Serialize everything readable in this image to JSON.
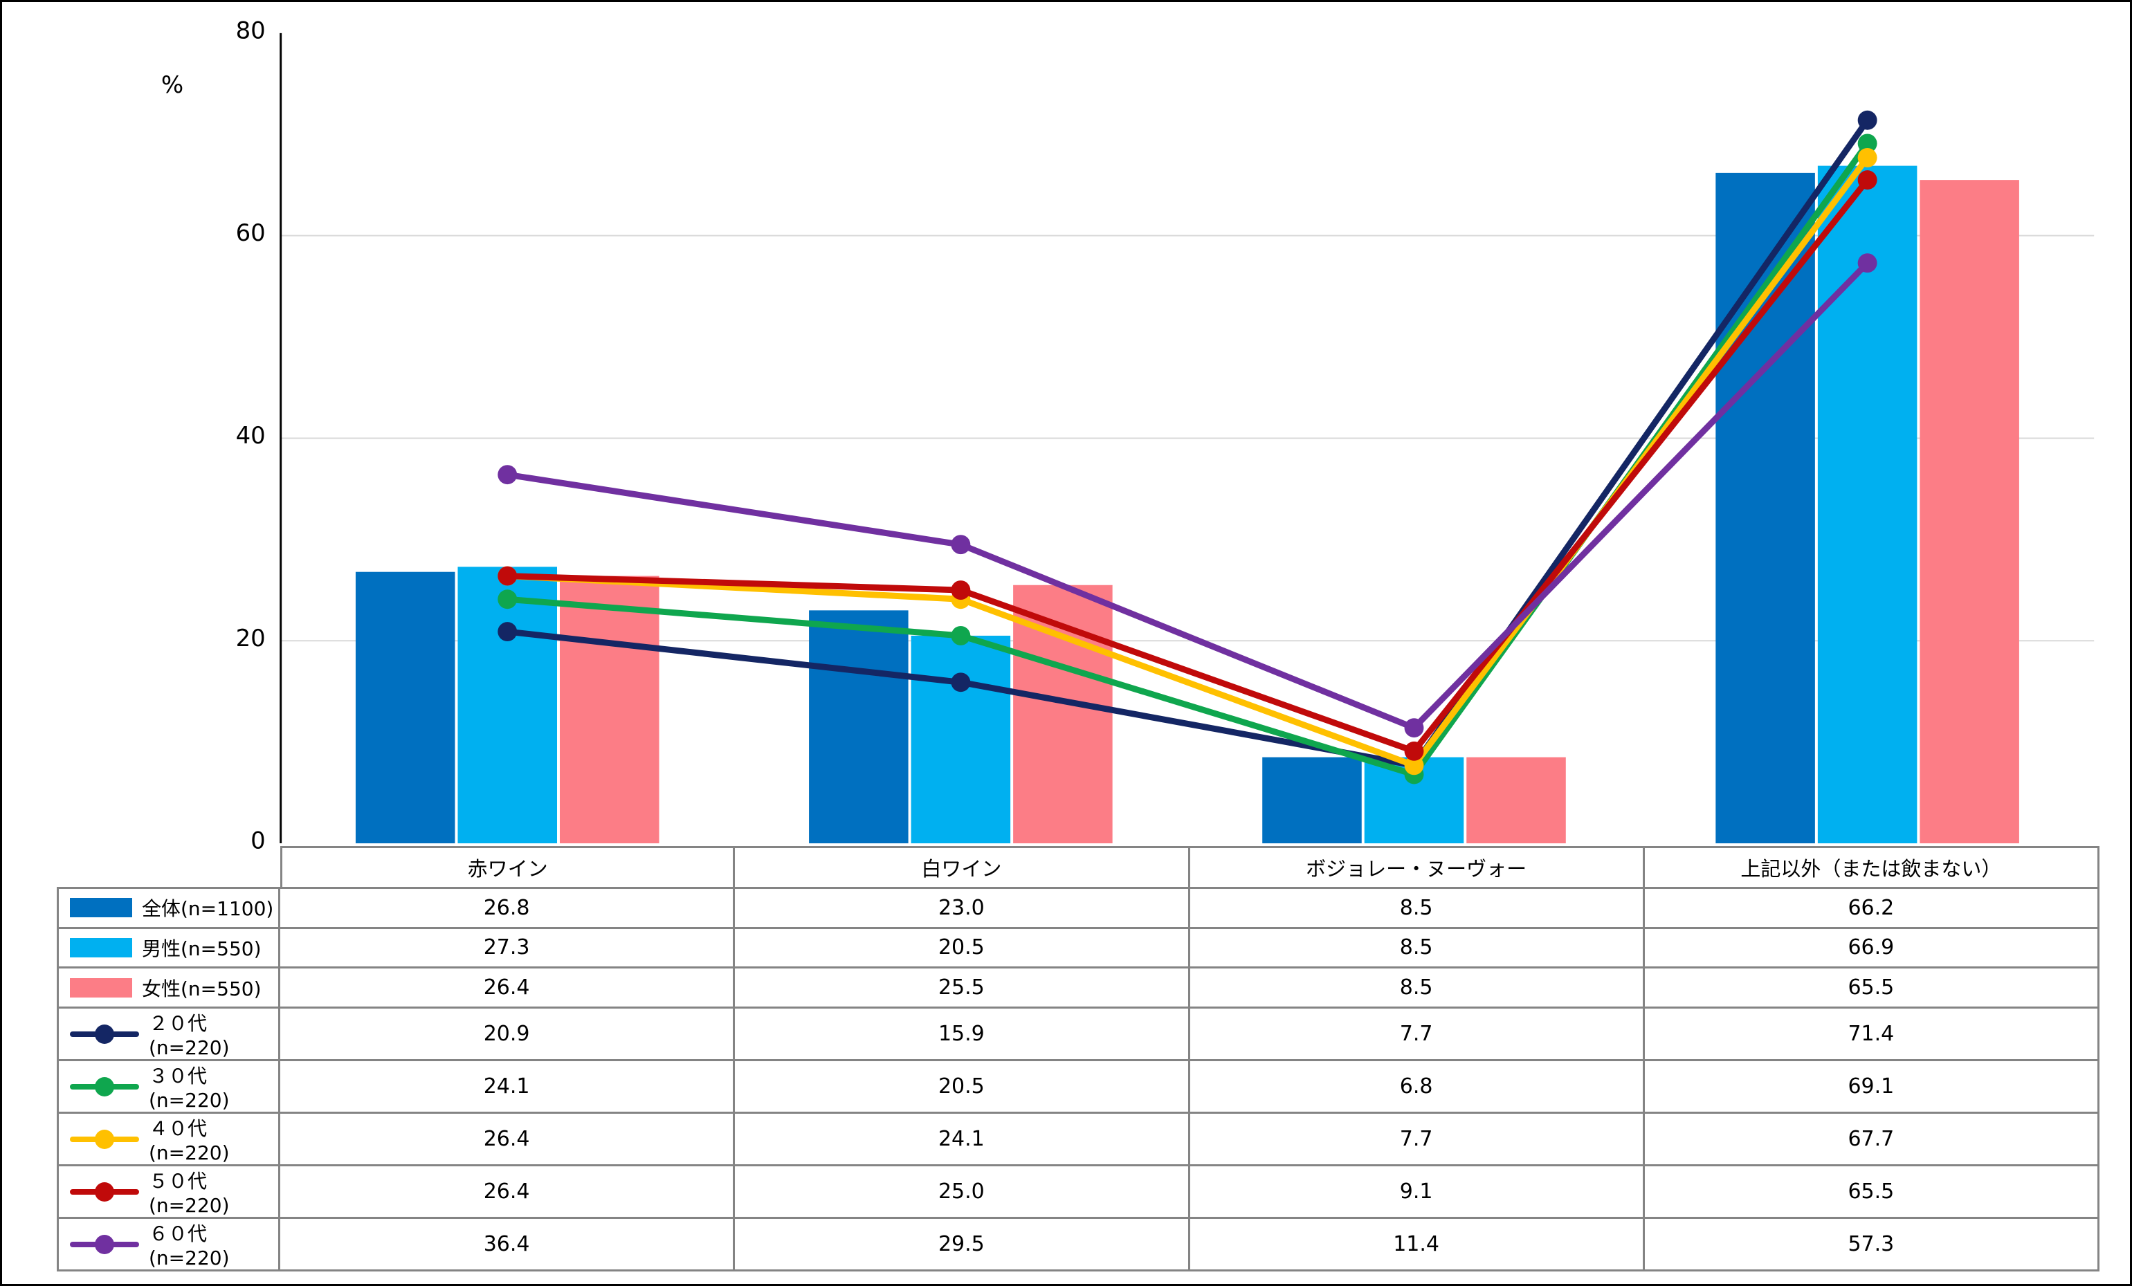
{
  "colors": {
    "gridline": "#D9D9D9",
    "table_border": "#848484",
    "axis": "#000000",
    "text": "#000000"
  },
  "chart_data": {
    "type": "combo-bar-line",
    "title": "",
    "ylabel": "%",
    "ylim": [
      0,
      80
    ],
    "yticks": [
      0,
      20,
      40,
      60,
      80
    ],
    "grid": "horizontal-at-20-40-60",
    "legend_position": "table-left-column",
    "categories": [
      "赤ワイン",
      "白ワイン",
      "ボジョレー・ヌーヴォー",
      "上記以外（または飲まない）"
    ],
    "bar_series": [
      {
        "name": "全体(n=1100)",
        "color": "#0070C0",
        "values": [
          26.8,
          23.0,
          8.5,
          66.2
        ]
      },
      {
        "name": "男性(n=550)",
        "color": "#00B0F0",
        "values": [
          27.3,
          20.5,
          8.5,
          66.9
        ]
      },
      {
        "name": "女性(n=550)",
        "color": "#FC7D86",
        "values": [
          26.4,
          25.5,
          8.5,
          65.5
        ]
      }
    ],
    "line_series": [
      {
        "name": "２０代(n=220)",
        "color": "#142664",
        "values": [
          20.9,
          15.9,
          7.7,
          71.4
        ]
      },
      {
        "name": "３０代(n=220)",
        "color": "#0FA64E",
        "values": [
          24.1,
          20.5,
          6.8,
          69.1
        ]
      },
      {
        "name": "４０代(n=220)",
        "color": "#FFC000",
        "values": [
          26.4,
          24.1,
          7.7,
          67.7
        ]
      },
      {
        "name": "５０代(n=220)",
        "color": "#C00A0A",
        "values": [
          26.4,
          25.0,
          9.1,
          65.5
        ]
      },
      {
        "name": "６０代(n=220)",
        "color": "#7030A0",
        "values": [
          36.4,
          29.5,
          11.4,
          57.3
        ]
      }
    ]
  }
}
